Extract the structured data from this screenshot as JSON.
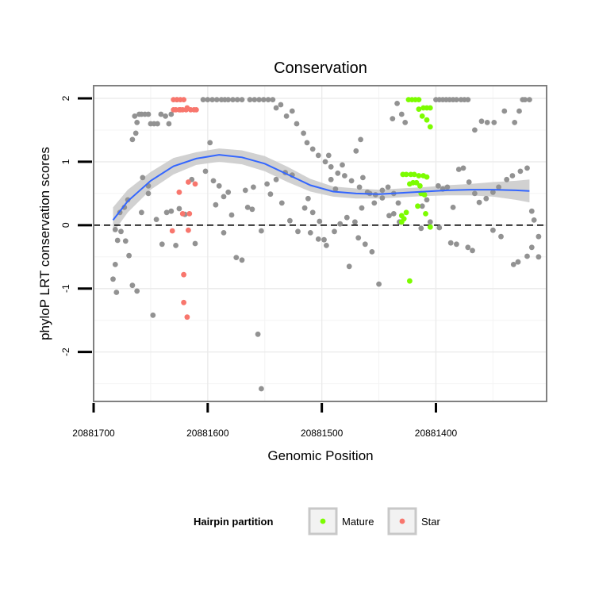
{
  "chart_data": {
    "type": "scatter",
    "title": "Conservation",
    "xlabel": "Genomic Position",
    "ylabel": "phyloP LRT conservation scores",
    "x_reversed": true,
    "xlim": [
      20881700,
      20881303
    ],
    "ylim": [
      -2.78,
      2.2
    ],
    "x_ticks": [
      20881700,
      20881600,
      20881500,
      20881400
    ],
    "x_tick_labels": [
      "20881700",
      "20881600",
      "20881500",
      "20881400"
    ],
    "y_ticks": [
      2,
      1,
      0,
      -1,
      -2
    ],
    "y_tick_labels": [
      "2",
      "1",
      "0",
      "-1",
      "-2"
    ],
    "grid": true,
    "legend": {
      "title": "Hairpin partition",
      "position": "bottom",
      "entries": [
        {
          "label": "Mature",
          "color": "#7cfc00"
        },
        {
          "label": "Star",
          "color": "#f8766d"
        }
      ]
    },
    "reference_line": {
      "y": 0,
      "style": "dashed",
      "color": "#000000"
    },
    "colors": {
      "other": "#929292",
      "smooth": "#3366ff",
      "ribbon": "#cccccc"
    },
    "smooth": {
      "x": [
        20881683,
        20881670,
        20881650,
        20881630,
        20881610,
        20881590,
        20881570,
        20881550,
        20881530,
        20881510,
        20881490,
        20881470,
        20881450,
        20881430,
        20881410,
        20881390,
        20881370,
        20881350,
        20881330,
        20881318
      ],
      "y": [
        0.08,
        0.38,
        0.7,
        0.93,
        1.05,
        1.11,
        1.07,
        0.97,
        0.8,
        0.63,
        0.53,
        0.5,
        0.49,
        0.51,
        0.53,
        0.55,
        0.56,
        0.56,
        0.55,
        0.54
      ],
      "lower": [
        -0.12,
        0.2,
        0.56,
        0.8,
        0.95,
        1.0,
        0.96,
        0.85,
        0.68,
        0.53,
        0.45,
        0.42,
        0.42,
        0.44,
        0.46,
        0.47,
        0.47,
        0.45,
        0.4,
        0.36
      ],
      "upper": [
        0.28,
        0.56,
        0.84,
        1.06,
        1.15,
        1.21,
        1.18,
        1.09,
        0.92,
        0.73,
        0.61,
        0.58,
        0.56,
        0.58,
        0.6,
        0.63,
        0.65,
        0.68,
        0.7,
        0.72
      ]
    },
    "series": [
      {
        "name": "Mature",
        "color": "#7cfc00",
        "points": [
          [
            20881424,
            1.98
          ],
          [
            20881421,
            1.98
          ],
          [
            20881418,
            1.98
          ],
          [
            20881415,
            1.98
          ],
          [
            20881411,
            1.85
          ],
          [
            20881408,
            1.85
          ],
          [
            20881405,
            1.85
          ],
          [
            20881415,
            1.83
          ],
          [
            20881412,
            1.72
          ],
          [
            20881408,
            1.66
          ],
          [
            20881405,
            1.55
          ],
          [
            20881429,
            0.8
          ],
          [
            20881426,
            0.8
          ],
          [
            20881422,
            0.8
          ],
          [
            20881419,
            0.8
          ],
          [
            20881415,
            0.78
          ],
          [
            20881411,
            0.78
          ],
          [
            20881408,
            0.76
          ],
          [
            20881423,
            0.65
          ],
          [
            20881420,
            0.67
          ],
          [
            20881417,
            0.67
          ],
          [
            20881414,
            0.62
          ],
          [
            20881413,
            0.5
          ],
          [
            20881410,
            0.48
          ],
          [
            20881416,
            0.3
          ],
          [
            20881409,
            0.18
          ],
          [
            20881430,
            0.05
          ],
          [
            20881428,
            0.1
          ],
          [
            20881426,
            0.2
          ],
          [
            20881430,
            0.15
          ],
          [
            20881405,
            -0.03
          ],
          [
            20881423,
            -0.88
          ]
        ]
      },
      {
        "name": "Star",
        "color": "#f8766d",
        "points": [
          [
            20881630,
            1.98
          ],
          [
            20881627,
            1.98
          ],
          [
            20881624,
            1.98
          ],
          [
            20881621,
            1.98
          ],
          [
            20881618,
            1.85
          ],
          [
            20881624,
            1.82
          ],
          [
            20881630,
            1.82
          ],
          [
            20881628,
            1.82
          ],
          [
            20881625,
            1.82
          ],
          [
            20881622,
            1.82
          ],
          [
            20881619,
            1.82
          ],
          [
            20881615,
            1.82
          ],
          [
            20881612,
            1.82
          ],
          [
            20881610,
            1.82
          ],
          [
            20881617,
            0.68
          ],
          [
            20881611,
            0.65
          ],
          [
            20881625,
            0.52
          ],
          [
            20881622,
            0.18
          ],
          [
            20881616,
            0.18
          ],
          [
            20881631,
            -0.09
          ],
          [
            20881617,
            -0.08
          ],
          [
            20881621,
            -0.78
          ],
          [
            20881621,
            -1.22
          ],
          [
            20881618,
            -1.45
          ]
        ]
      },
      {
        "name": "",
        "color": "#929292",
        "points": [
          [
            20881681,
            -0.07
          ],
          [
            20881677,
            0.2
          ],
          [
            20881673,
            0.28
          ],
          [
            20881670,
            0.4
          ],
          [
            20881666,
            1.35
          ],
          [
            20881663,
            1.45
          ],
          [
            20881662,
            1.62
          ],
          [
            20881658,
            1.75
          ],
          [
            20881655,
            1.75
          ],
          [
            20881652,
            1.75
          ],
          [
            20881650,
            1.6
          ],
          [
            20881647,
            1.6
          ],
          [
            20881644,
            1.6
          ],
          [
            20881641,
            1.75
          ],
          [
            20881637,
            1.72
          ],
          [
            20881634,
            1.6
          ],
          [
            20881632,
            1.75
          ],
          [
            20881627,
            1.98
          ],
          [
            20881660,
            1.75
          ],
          [
            20881664,
            1.72
          ],
          [
            20881679,
            -0.24
          ],
          [
            20881676,
            -0.1
          ],
          [
            20881683,
            -0.85
          ],
          [
            20881681,
            -0.62
          ],
          [
            20881680,
            -1.06
          ],
          [
            20881672,
            -0.25
          ],
          [
            20881669,
            -0.48
          ],
          [
            20881666,
            -0.95
          ],
          [
            20881662,
            -1.04
          ],
          [
            20881658,
            0.2
          ],
          [
            20881652,
            0.62
          ],
          [
            20881648,
            -1.42
          ],
          [
            20881636,
            0.2
          ],
          [
            20881625,
            0.26
          ],
          [
            20881620,
            0.17
          ],
          [
            20881614,
            0.72
          ],
          [
            20881602,
            0.85
          ],
          [
            20881598,
            1.3
          ],
          [
            20881595,
            0.7
          ],
          [
            20881590,
            0.62
          ],
          [
            20881586,
            0.45
          ],
          [
            20881582,
            0.52
          ],
          [
            20881575,
            -0.51
          ],
          [
            20881570,
            -0.55
          ],
          [
            20881565,
            0.28
          ],
          [
            20881560,
            0.6
          ],
          [
            20881548,
            0.65
          ],
          [
            20881540,
            0.72
          ],
          [
            20881532,
            0.83
          ],
          [
            20881526,
            0.79
          ],
          [
            20881512,
            0.42
          ],
          [
            20881508,
            0.2
          ],
          [
            20881502,
            0.06
          ],
          [
            20881498,
            -0.23
          ],
          [
            20881494,
            1.1
          ],
          [
            20881492,
            0.72
          ],
          [
            20881488,
            0.57
          ],
          [
            20881482,
            0.95
          ],
          [
            20881476,
            -0.65
          ],
          [
            20881470,
            1.17
          ],
          [
            20881466,
            1.35
          ],
          [
            20881464,
            0.75
          ],
          [
            20881458,
            0.5
          ],
          [
            20881454,
            0.35
          ],
          [
            20881450,
            -0.93
          ],
          [
            20881447,
            0.55
          ],
          [
            20881442,
            0.6
          ],
          [
            20881438,
            1.68
          ],
          [
            20881434,
            1.92
          ],
          [
            20881430,
            1.75
          ],
          [
            20881427,
            1.62
          ],
          [
            20881400,
            1.98
          ],
          [
            20881397,
            1.98
          ],
          [
            20881394,
            1.98
          ],
          [
            20881391,
            1.98
          ],
          [
            20881388,
            1.98
          ],
          [
            20881385,
            1.98
          ],
          [
            20881382,
            1.98
          ],
          [
            20881378,
            1.98
          ],
          [
            20881375,
            1.98
          ],
          [
            20881372,
            1.98
          ],
          [
            20881366,
            1.5
          ],
          [
            20881360,
            1.64
          ],
          [
            20881355,
            1.62
          ],
          [
            20881349,
            1.62
          ],
          [
            20881340,
            1.8
          ],
          [
            20881331,
            1.62
          ],
          [
            20881327,
            1.8
          ],
          [
            20881324,
            1.98
          ],
          [
            20881322,
            1.98
          ],
          [
            20881318,
            1.98
          ],
          [
            20881398,
            0.62
          ],
          [
            20881394,
            0.57
          ],
          [
            20881390,
            0.6
          ],
          [
            20881385,
            0.28
          ],
          [
            20881380,
            0.88
          ],
          [
            20881376,
            0.9
          ],
          [
            20881371,
            0.68
          ],
          [
            20881366,
            0.5
          ],
          [
            20881362,
            0.36
          ],
          [
            20881356,
            0.42
          ],
          [
            20881350,
            0.52
          ],
          [
            20881345,
            0.6
          ],
          [
            20881338,
            0.72
          ],
          [
            20881333,
            0.78
          ],
          [
            20881326,
            0.85
          ],
          [
            20881320,
            0.9
          ],
          [
            20881316,
            0.22
          ],
          [
            20881314,
            0.08
          ],
          [
            20881310,
            -0.18
          ],
          [
            20881397,
            -0.04
          ],
          [
            20881387,
            -0.28
          ],
          [
            20881382,
            -0.3
          ],
          [
            20881372,
            -0.35
          ],
          [
            20881368,
            -0.4
          ],
          [
            20881350,
            -0.08
          ],
          [
            20881343,
            -0.18
          ],
          [
            20881332,
            -0.62
          ],
          [
            20881328,
            -0.58
          ],
          [
            20881316,
            -0.35
          ],
          [
            20881310,
            -0.5
          ],
          [
            20881320,
            -0.49
          ],
          [
            20881604,
            1.98
          ],
          [
            20881600,
            1.98
          ],
          [
            20881596,
            1.98
          ],
          [
            20881592,
            1.98
          ],
          [
            20881588,
            1.98
          ],
          [
            20881585,
            1.98
          ],
          [
            20881582,
            1.98
          ],
          [
            20881578,
            1.98
          ],
          [
            20881574,
            1.98
          ],
          [
            20881570,
            1.98
          ],
          [
            20881563,
            1.98
          ],
          [
            20881559,
            1.98
          ],
          [
            20881555,
            1.98
          ],
          [
            20881551,
            1.98
          ],
          [
            20881547,
            1.98
          ],
          [
            20881543,
            1.98
          ],
          [
            20881540,
            1.85
          ],
          [
            20881536,
            1.9
          ],
          [
            20881531,
            1.72
          ],
          [
            20881526,
            1.8
          ],
          [
            20881522,
            1.6
          ],
          [
            20881516,
            1.45
          ],
          [
            20881513,
            1.3
          ],
          [
            20881508,
            1.2
          ],
          [
            20881503,
            1.1
          ],
          [
            20881497,
            1.0
          ],
          [
            20881492,
            0.92
          ],
          [
            20881486,
            0.82
          ],
          [
            20881480,
            0.78
          ],
          [
            20881474,
            0.7
          ],
          [
            20881467,
            0.6
          ],
          [
            20881460,
            0.52
          ],
          [
            20881453,
            0.48
          ],
          [
            20881447,
            0.43
          ],
          [
            20881437,
            0.5
          ],
          [
            20881433,
            0.35
          ],
          [
            20881441,
            0.15
          ],
          [
            20881437,
            0.18
          ],
          [
            20881432,
            0.05
          ],
          [
            20881468,
            -0.2
          ],
          [
            20881462,
            -0.3
          ],
          [
            20881456,
            -0.42
          ],
          [
            20881465,
            0.27
          ],
          [
            20881471,
            0.05
          ],
          [
            20881478,
            0.12
          ],
          [
            20881484,
            0.02
          ],
          [
            20881489,
            -0.1
          ],
          [
            20881496,
            -0.32
          ],
          [
            20881503,
            -0.22
          ],
          [
            20881510,
            -0.12
          ],
          [
            20881515,
            0.27
          ],
          [
            20881521,
            -0.1
          ],
          [
            20881528,
            0.07
          ],
          [
            20881535,
            0.35
          ],
          [
            20881545,
            0.49
          ],
          [
            20881553,
            -0.09
          ],
          [
            20881561,
            0.25
          ],
          [
            20881567,
            0.55
          ],
          [
            20881579,
            0.16
          ],
          [
            20881586,
            -0.12
          ],
          [
            20881593,
            0.32
          ],
          [
            20881611,
            -0.29
          ],
          [
            20881652,
            0.5
          ],
          [
            20881657,
            0.75
          ],
          [
            20881645,
            0.09
          ],
          [
            20881632,
            0.22
          ],
          [
            20881628,
            -0.32
          ],
          [
            20881556,
            -1.72
          ],
          [
            20881553,
            -2.58
          ],
          [
            20881640,
            -0.3
          ],
          [
            20881412,
            0.3
          ],
          [
            20881408,
            0.4
          ],
          [
            20881413,
            -0.05
          ],
          [
            20881405,
            0.05
          ]
        ]
      }
    ]
  }
}
